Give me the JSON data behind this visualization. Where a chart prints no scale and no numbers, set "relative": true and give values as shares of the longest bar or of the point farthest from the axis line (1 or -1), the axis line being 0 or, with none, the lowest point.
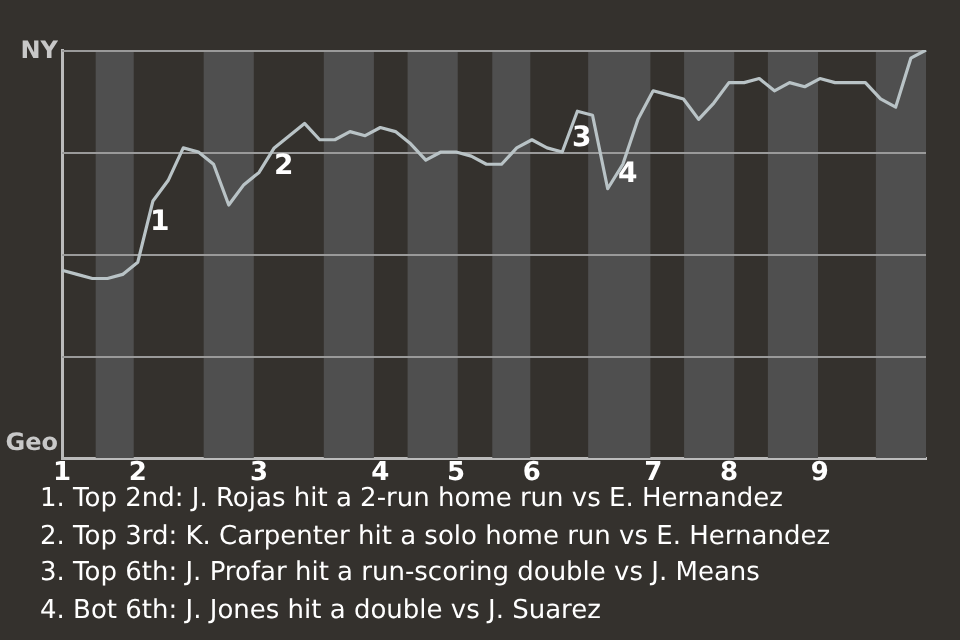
{
  "chart_data": {
    "type": "line",
    "relative": true,
    "categories": [
      "1",
      null,
      null,
      null,
      null,
      "2",
      null,
      null,
      null,
      null,
      null,
      null,
      null,
      "3",
      null,
      null,
      null,
      null,
      null,
      null,
      null,
      "4",
      null,
      null,
      null,
      null,
      "5",
      null,
      null,
      null,
      null,
      "6",
      null,
      null,
      null,
      null,
      null,
      null,
      null,
      "7",
      null,
      null,
      null,
      null,
      "8",
      null,
      null,
      null,
      null,
      null,
      "9",
      null,
      null,
      null,
      null,
      null,
      null,
      null
    ],
    "series": [
      {
        "color": "#b9c3c6",
        "values": [
          0.46,
          0.45,
          0.44,
          0.44,
          0.45,
          0.48,
          0.63,
          0.68,
          0.76,
          0.75,
          0.72,
          0.62,
          0.67,
          0.7,
          0.76,
          0.79,
          0.82,
          0.78,
          0.78,
          0.8,
          0.79,
          0.81,
          0.8,
          0.77,
          0.73,
          0.75,
          0.75,
          0.74,
          0.72,
          0.72,
          0.76,
          0.78,
          0.76,
          0.75,
          0.85,
          0.84,
          0.66,
          0.72,
          0.83,
          0.9,
          0.89,
          0.88,
          0.83,
          0.87,
          0.92,
          0.92,
          0.93,
          0.9,
          0.92,
          0.91,
          0.93,
          0.92,
          0.92,
          0.92,
          0.88,
          0.86,
          0.98,
          1.0
        ]
      }
    ],
    "grid": "y",
    "marker": "none",
    "annotations": [
      "NY",
      "Geo",
      "1",
      "2",
      "3",
      "4",
      "1. Top 2nd: J. Rojas hit a 2-run home run vs E. Hernandez",
      "2. Top 3rd: K. Carpenter hit a solo home run vs E. Hernandez",
      "3. Top 6th: J. Profar hit a run-scoring double vs J. Means",
      "4. Bot 6th: J. Jones hit a double vs J. Suarez"
    ]
  }
}
